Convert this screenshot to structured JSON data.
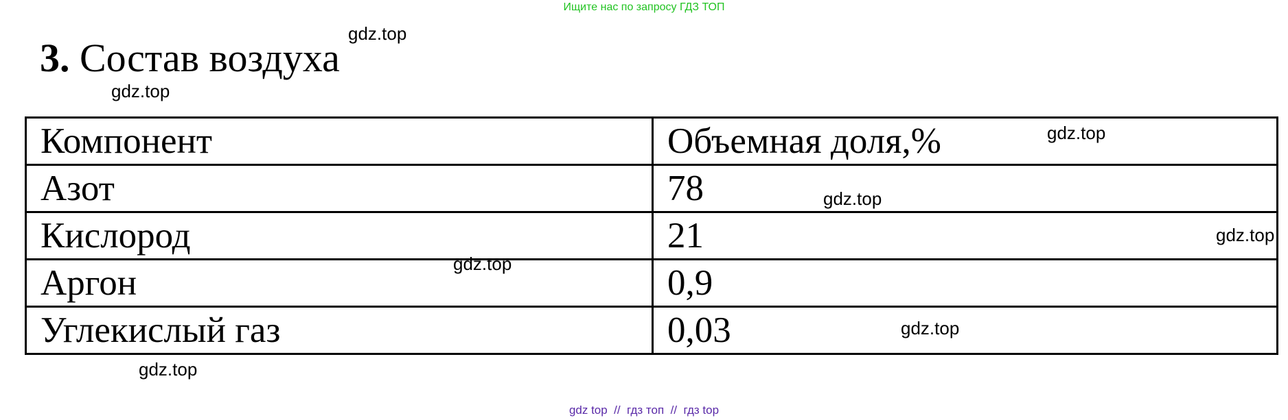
{
  "banner": "Ищите нас по запросу ГДЗ ТОП",
  "title": {
    "number": "3.",
    "text": "Состав воздуха"
  },
  "table": {
    "headers": [
      "Компонент",
      "Объемная доля,%"
    ],
    "rows": [
      [
        "Азот",
        "78"
      ],
      [
        "Кислород",
        "21"
      ],
      [
        "Аргон",
        "0,9"
      ],
      [
        "Углекислый газ",
        "0,03"
      ]
    ]
  },
  "watermark": "gdz.top",
  "footer": "gdz top  //  гдз топ  //  гдз top",
  "colors": {
    "banner": "#22c322",
    "footer": "#5a2aa8"
  }
}
